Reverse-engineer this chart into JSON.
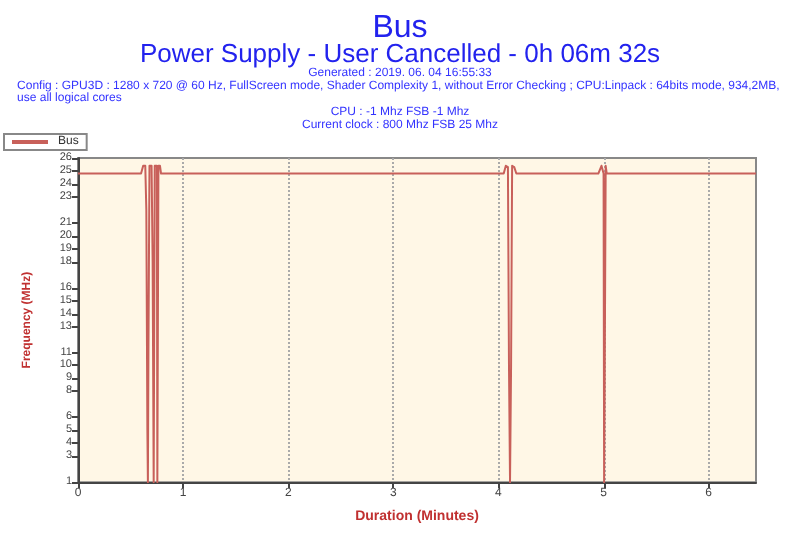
{
  "chart_data": {
    "type": "line",
    "title": "Bus",
    "subtitle": "Power Supply - User Cancelled - 0h 06m 32s",
    "annotations": [
      "Generated : 2019. 06. 04 16:55:33",
      "Config : GPU3D : 1280 x 720 @ 60 Hz, FullScreen mode, Shader Complexity 1, without Error Checking ; CPU:Linpack : 64bits mode, 934,2MB, use all logical cores",
      "CPU : -1 Mhz FSB -1 Mhz",
      "Current clock : 800 Mhz FSB 25 Mhz"
    ],
    "xlabel": "Duration (Minutes)",
    "ylabel": "Frequency (MHz)",
    "series": [
      {
        "name": "Bus",
        "color": "#c8605a",
        "x": [
          0,
          0.6,
          0.62,
          0.64,
          0.65,
          0.66,
          0.665,
          0.67,
          0.68,
          0.7,
          0.71,
          0.72,
          0.725,
          0.73,
          0.75,
          0.755,
          0.76,
          0.765,
          0.78,
          0.79,
          4.0,
          4.05,
          4.07,
          4.09,
          4.1,
          4.11,
          4.12,
          4.13,
          4.15,
          4.17,
          4.95,
          4.98,
          5.0,
          5.005,
          5.01,
          5.02,
          5.03,
          6.45
        ],
        "values": [
          24.8,
          24.8,
          25.4,
          25.4,
          22,
          5,
          1,
          11,
          25.4,
          25.4,
          18,
          1,
          1,
          25.4,
          25.4,
          1,
          1,
          25.4,
          25.4,
          24.8,
          24.8,
          24.8,
          25.4,
          25.3,
          10,
          1,
          10,
          25.4,
          25.3,
          24.8,
          24.8,
          25.4,
          24.8,
          1,
          8,
          25.4,
          24.8,
          24.8
        ]
      }
    ],
    "xlim": [
      0,
      6.45
    ],
    "xticks": [
      0,
      1,
      2,
      3,
      4,
      5,
      6
    ],
    "ylim": [
      1,
      26
    ],
    "yticks": [
      1,
      3,
      4,
      5,
      6,
      8,
      9,
      10,
      11,
      13,
      14,
      15,
      16,
      18,
      19,
      20,
      21,
      23,
      24,
      25,
      26
    ],
    "grid": "x",
    "legend": "top left",
    "marker": "none",
    "line_style": "solid"
  }
}
